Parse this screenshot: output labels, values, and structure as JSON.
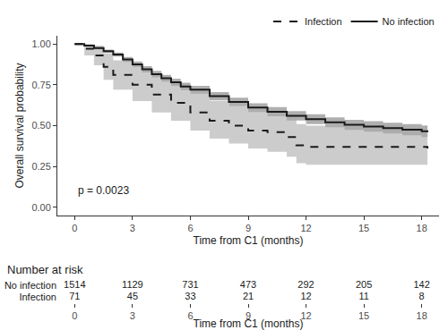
{
  "chart_data": {
    "type": "line",
    "xlabel": "Time from C1 (months)",
    "ylabel": "Overall survival probability",
    "annotation": "p = 0.0023",
    "legend": "top right",
    "grid": false,
    "xlim": [
      -0.9,
      18.9
    ],
    "xticks": [
      0,
      3,
      6,
      9,
      12,
      15,
      18
    ],
    "ylim": [
      -0.05,
      1.05
    ],
    "yticks": [
      {
        "value": 0,
        "label": "0.00"
      },
      {
        "value": 0.25,
        "label": "0.25"
      },
      {
        "value": 0.5,
        "label": "0.50"
      },
      {
        "value": 0.75,
        "label": "0.75"
      },
      {
        "value": 1,
        "label": "1.00"
      }
    ],
    "series": [
      {
        "name": "No infection",
        "color": "#1a1a1a",
        "line_style": "solid",
        "x": [
          0,
          0.5,
          1,
          1.5,
          2,
          2.5,
          3,
          3.5,
          4,
          4.5,
          5,
          5.5,
          6,
          7,
          8,
          9,
          10,
          11,
          12,
          13,
          14,
          15,
          16,
          17,
          18,
          18.3
        ],
        "values": [
          1,
          0.99,
          0.975,
          0.955,
          0.935,
          0.905,
          0.875,
          0.845,
          0.815,
          0.79,
          0.765,
          0.74,
          0.72,
          0.68,
          0.645,
          0.61,
          0.585,
          0.56,
          0.54,
          0.52,
          0.505,
          0.495,
          0.485,
          0.475,
          0.465,
          0.46
        ],
        "lower": [
          1,
          0.985,
          0.967,
          0.945,
          0.923,
          0.89,
          0.858,
          0.826,
          0.795,
          0.769,
          0.743,
          0.717,
          0.696,
          0.655,
          0.619,
          0.583,
          0.557,
          0.531,
          0.51,
          0.49,
          0.474,
          0.463,
          0.452,
          0.441,
          0.43,
          0.424
        ],
        "upper": [
          1,
          0.995,
          0.983,
          0.965,
          0.947,
          0.92,
          0.892,
          0.864,
          0.835,
          0.811,
          0.787,
          0.763,
          0.744,
          0.705,
          0.671,
          0.637,
          0.613,
          0.589,
          0.57,
          0.55,
          0.536,
          0.527,
          0.518,
          0.509,
          0.5,
          0.496
        ]
      },
      {
        "name": "Infection",
        "color": "#1a1a1a",
        "line_style": "dash",
        "x": [
          0,
          0.5,
          1,
          1.5,
          2,
          3,
          4,
          5,
          6,
          7,
          8,
          9,
          10,
          11,
          11.5,
          12,
          18.3
        ],
        "values": [
          1,
          0.97,
          0.93,
          0.86,
          0.81,
          0.75,
          0.69,
          0.64,
          0.58,
          0.53,
          0.5,
          0.47,
          0.46,
          0.43,
          0.38,
          0.37,
          0.36
        ],
        "lower": [
          1,
          0.93,
          0.87,
          0.78,
          0.72,
          0.65,
          0.58,
          0.53,
          0.47,
          0.42,
          0.39,
          0.36,
          0.34,
          0.31,
          0.27,
          0.26,
          0.25
        ],
        "upper": [
          1,
          1,
          0.99,
          0.94,
          0.9,
          0.86,
          0.8,
          0.76,
          0.7,
          0.65,
          0.62,
          0.59,
          0.58,
          0.56,
          0.51,
          0.5,
          0.49
        ]
      }
    ],
    "risk_table": {
      "title": "Number at risk",
      "x": [
        0,
        3,
        6,
        9,
        12,
        15,
        18
      ],
      "rows": [
        {
          "name": "No infection",
          "values": [
            1514,
            1129,
            731,
            473,
            292,
            205,
            142
          ]
        },
        {
          "name": "Infection",
          "values": [
            71,
            45,
            33,
            21,
            12,
            11,
            8
          ]
        }
      ]
    }
  }
}
